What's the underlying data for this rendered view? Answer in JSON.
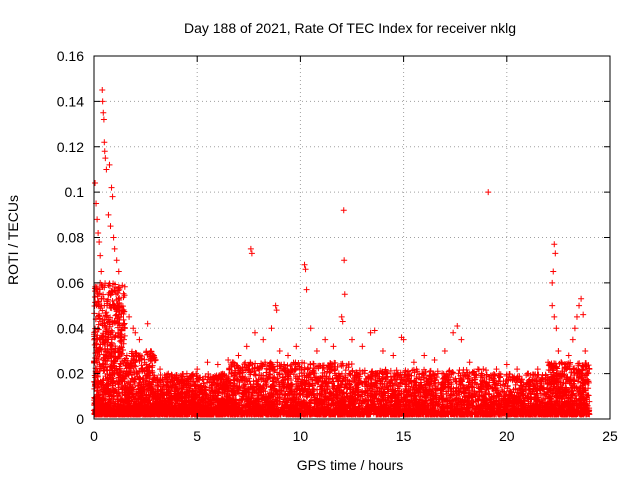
{
  "chart_data": {
    "type": "scatter",
    "title": "Day 188 of 2021, Rate Of TEC Index for receiver nklg",
    "xlabel": "GPS time / hours",
    "ylabel": "ROTI / TECUs",
    "xlim": [
      0,
      25
    ],
    "ylim": [
      0,
      0.16
    ],
    "xticks": [
      0,
      5,
      10,
      15,
      20,
      25
    ],
    "yticks": [
      0,
      0.02,
      0.04,
      0.06,
      0.08,
      0.1,
      0.12,
      0.14,
      0.16
    ],
    "xtick_labels": [
      "0",
      "5",
      "10",
      "15",
      "20",
      "25"
    ],
    "ytick_labels": [
      "0",
      "0.02",
      "0.04",
      "0.06",
      "0.08",
      "0.1",
      "0.12",
      "0.14",
      "0.16"
    ],
    "grid": true,
    "marker": "+",
    "color": "#ff0000",
    "series": [
      {
        "name": "ROTI",
        "points": [
          [
            0.05,
            0.104
          ],
          [
            0.1,
            0.095
          ],
          [
            0.15,
            0.088
          ],
          [
            0.2,
            0.082
          ],
          [
            0.25,
            0.078
          ],
          [
            0.3,
            0.072
          ],
          [
            0.35,
            0.065
          ],
          [
            0.4,
            0.145
          ],
          [
            0.42,
            0.14
          ],
          [
            0.45,
            0.135
          ],
          [
            0.48,
            0.132
          ],
          [
            0.5,
            0.122
          ],
          [
            0.52,
            0.118
          ],
          [
            0.55,
            0.115
          ],
          [
            0.6,
            0.11
          ],
          [
            0.75,
            0.112
          ],
          [
            0.85,
            0.102
          ],
          [
            0.9,
            0.098
          ],
          [
            0.7,
            0.09
          ],
          [
            0.8,
            0.085
          ],
          [
            0.95,
            0.08
          ],
          [
            1.0,
            0.075
          ],
          [
            1.1,
            0.07
          ],
          [
            1.2,
            0.065
          ],
          [
            0.3,
            0.06
          ],
          [
            0.5,
            0.058
          ],
          [
            0.7,
            0.055
          ],
          [
            0.9,
            0.052
          ],
          [
            1.0,
            0.05
          ],
          [
            1.1,
            0.048
          ],
          [
            1.2,
            0.046
          ],
          [
            0.2,
            0.045
          ],
          [
            0.4,
            0.042
          ],
          [
            0.6,
            0.04
          ],
          [
            0.8,
            0.038
          ],
          [
            1.0,
            0.036
          ],
          [
            1.3,
            0.045
          ],
          [
            1.5,
            0.04
          ],
          [
            1.7,
            0.045
          ],
          [
            1.9,
            0.04
          ],
          [
            2.0,
            0.038
          ],
          [
            2.2,
            0.035
          ],
          [
            2.6,
            0.042
          ],
          [
            2.7,
            0.029
          ],
          [
            2.9,
            0.028
          ],
          [
            3.2,
            0.022
          ],
          [
            3.6,
            0.02
          ],
          [
            4.0,
            0.018
          ],
          [
            4.5,
            0.02
          ],
          [
            5.0,
            0.022
          ],
          [
            5.5,
            0.025
          ],
          [
            6.0,
            0.024
          ],
          [
            6.5,
            0.026
          ],
          [
            7.0,
            0.028
          ],
          [
            7.4,
            0.032
          ],
          [
            7.6,
            0.075
          ],
          [
            7.65,
            0.073
          ],
          [
            7.8,
            0.038
          ],
          [
            8.2,
            0.035
          ],
          [
            8.6,
            0.04
          ],
          [
            8.8,
            0.05
          ],
          [
            8.85,
            0.048
          ],
          [
            9.0,
            0.03
          ],
          [
            9.4,
            0.028
          ],
          [
            9.8,
            0.032
          ],
          [
            10.2,
            0.068
          ],
          [
            10.25,
            0.066
          ],
          [
            10.3,
            0.057
          ],
          [
            10.5,
            0.04
          ],
          [
            10.8,
            0.03
          ],
          [
            11.2,
            0.035
          ],
          [
            11.6,
            0.032
          ],
          [
            12.0,
            0.045
          ],
          [
            12.05,
            0.043
          ],
          [
            12.1,
            0.092
          ],
          [
            12.12,
            0.07
          ],
          [
            12.15,
            0.055
          ],
          [
            12.5,
            0.035
          ],
          [
            13.0,
            0.032
          ],
          [
            13.4,
            0.038
          ],
          [
            13.6,
            0.039
          ],
          [
            14.0,
            0.03
          ],
          [
            14.5,
            0.028
          ],
          [
            14.9,
            0.036
          ],
          [
            15.0,
            0.035
          ],
          [
            15.5,
            0.025
          ],
          [
            16.0,
            0.028
          ],
          [
            16.5,
            0.026
          ],
          [
            17.0,
            0.03
          ],
          [
            17.4,
            0.038
          ],
          [
            17.6,
            0.041
          ],
          [
            17.8,
            0.035
          ],
          [
            18.2,
            0.025
          ],
          [
            18.6,
            0.022
          ],
          [
            19.1,
            0.1
          ],
          [
            19.5,
            0.022
          ],
          [
            20.0,
            0.024
          ],
          [
            20.5,
            0.022
          ],
          [
            21.0,
            0.02
          ],
          [
            21.5,
            0.022
          ],
          [
            22.0,
            0.025
          ],
          [
            22.2,
            0.06
          ],
          [
            22.25,
            0.065
          ],
          [
            22.3,
            0.077
          ],
          [
            22.35,
            0.073
          ],
          [
            22.2,
            0.05
          ],
          [
            22.3,
            0.045
          ],
          [
            22.4,
            0.04
          ],
          [
            22.5,
            0.03
          ],
          [
            23.0,
            0.028
          ],
          [
            23.2,
            0.035
          ],
          [
            23.3,
            0.04
          ],
          [
            23.4,
            0.045
          ],
          [
            23.5,
            0.05
          ],
          [
            23.6,
            0.053
          ],
          [
            23.7,
            0.046
          ],
          [
            23.8,
            0.03
          ],
          [
            23.9,
            0.02
          ]
        ]
      }
    ],
    "density_band": {
      "description": "dense scatter of measurements forming the baseline band",
      "segments": [
        {
          "x_start": 0.0,
          "x_end": 1.5,
          "y_low": 0.002,
          "y_high": 0.06,
          "count": 900
        },
        {
          "x_start": 1.5,
          "x_end": 3.0,
          "y_low": 0.002,
          "y_high": 0.03,
          "count": 600
        },
        {
          "x_start": 3.0,
          "x_end": 6.5,
          "y_low": 0.002,
          "y_high": 0.02,
          "count": 1200
        },
        {
          "x_start": 6.5,
          "x_end": 12.5,
          "y_low": 0.002,
          "y_high": 0.025,
          "count": 1800
        },
        {
          "x_start": 12.5,
          "x_end": 19.0,
          "y_low": 0.002,
          "y_high": 0.022,
          "count": 1700
        },
        {
          "x_start": 19.0,
          "x_end": 22.0,
          "y_low": 0.002,
          "y_high": 0.02,
          "count": 800
        },
        {
          "x_start": 22.0,
          "x_end": 24.0,
          "y_low": 0.002,
          "y_high": 0.025,
          "count": 700
        }
      ]
    }
  }
}
